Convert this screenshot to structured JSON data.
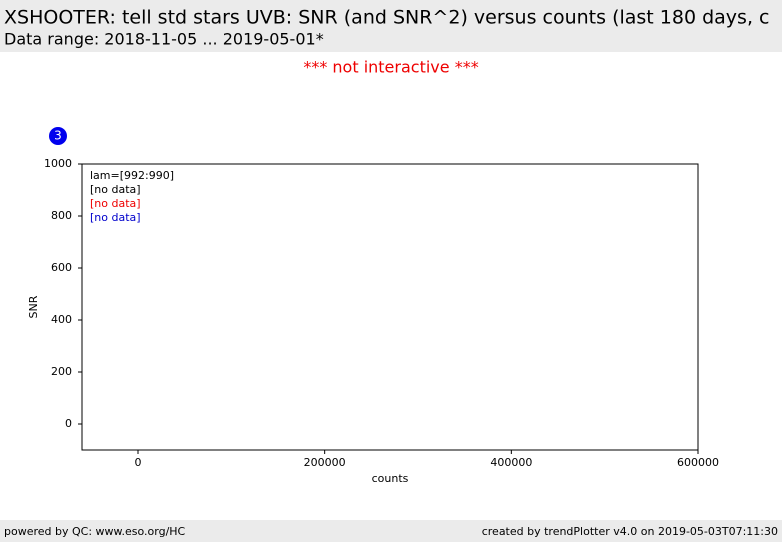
{
  "header": {
    "title": "XSHOOTER: tell std stars UVB: SNR (and SNR^2) versus counts (last 180 days, c",
    "subtitle": "Data range: 2018-11-05 ... 2019-05-01*"
  },
  "notice": "*** not interactive ***",
  "chart_data": {
    "type": "scatter",
    "badge": "3",
    "badge_color": "#0000ee",
    "xlabel": "counts",
    "ylabel": "SNR",
    "xlim": [
      -60000,
      600000
    ],
    "xticks": [
      0,
      200000,
      400000,
      600000
    ],
    "ylim": [
      -100,
      1000
    ],
    "yticks": [
      0,
      200,
      400,
      600,
      800,
      1000
    ],
    "annotations": [
      {
        "text": "lam=[992:990]",
        "color": "#000000"
      },
      {
        "text": "[no data]",
        "color": "#000000"
      },
      {
        "text": "[no data]",
        "color": "#ee0000"
      },
      {
        "text": "[no data]",
        "color": "#0000cc"
      }
    ],
    "series": []
  },
  "footer": {
    "left": "powered by QC: www.eso.org/HC",
    "right": "created by trendPlotter v4.0 on 2019-05-03T07:11:30"
  }
}
